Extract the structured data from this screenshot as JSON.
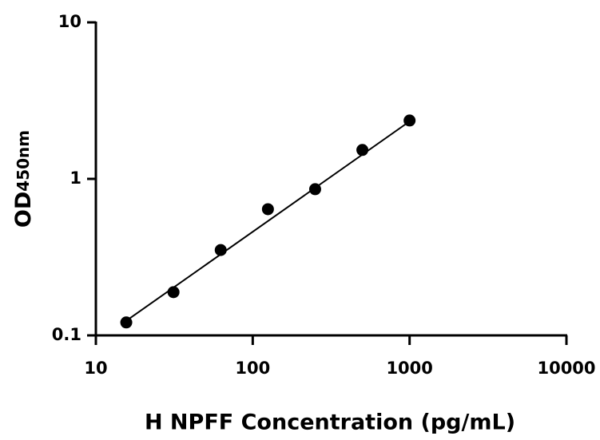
{
  "chart_data": {
    "type": "scatter",
    "x_label": "H NPFF Concentration (pg/mL)",
    "y_label": "OD",
    "y_label_sub": "450nm",
    "x_log": true,
    "y_log": true,
    "xlim": [
      10,
      10000
    ],
    "xticks": [
      10,
      100,
      1000,
      10000
    ],
    "ylim": [
      0.1,
      10
    ],
    "yticks": [
      0.1,
      1,
      10
    ],
    "series": [
      {
        "mode": "markers",
        "color": "#000000",
        "x": [
          15.625,
          31.25,
          62.5,
          125,
          250,
          500,
          1000
        ],
        "values": [
          0.121,
          0.189,
          0.351,
          0.64,
          0.859,
          1.53,
          2.36
        ]
      },
      {
        "mode": "line",
        "color": "#000000",
        "x": [
          15.625,
          1000
        ],
        "values": [
          0.124,
          2.33
        ]
      }
    ]
  }
}
